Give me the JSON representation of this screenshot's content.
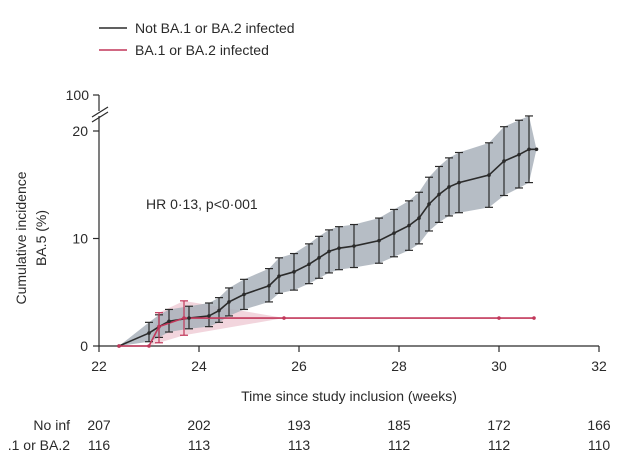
{
  "chart_data": {
    "type": "line",
    "title": "",
    "xlabel": "Time since study inclusion (weeks)",
    "ylabel": "Cumulative incidence BA.5 (%)",
    "ylabel_lines": [
      "Cumulative incidence",
      "BA.5 (%)"
    ],
    "xlim": [
      22,
      32
    ],
    "ylim": [
      0,
      20
    ],
    "x_ticks": [
      "22",
      "24",
      "26",
      "28",
      "30",
      "32"
    ],
    "y_ticks": [
      "0",
      "10",
      "20"
    ],
    "y_break_label": "100",
    "annotation": "HR 0·13, p<0·001",
    "legend_position": "top-left",
    "grid": false,
    "series": [
      {
        "name": "Not BA.1 or BA.2 infected",
        "color": "#2b2b2b",
        "band_color": "#a9b1bb",
        "points": [
          {
            "x": 22.4,
            "y": 0,
            "lo": 0,
            "hi": 0
          },
          {
            "x": 23.0,
            "y": 1.2,
            "lo": 0.4,
            "hi": 2.2
          },
          {
            "x": 23.2,
            "y": 1.8,
            "lo": 0.8,
            "hi": 2.9
          },
          {
            "x": 23.4,
            "y": 2.3,
            "lo": 1.3,
            "hi": 3.4
          },
          {
            "x": 23.8,
            "y": 2.6,
            "lo": 1.6,
            "hi": 3.7
          },
          {
            "x": 24.2,
            "y": 2.8,
            "lo": 1.8,
            "hi": 4.0
          },
          {
            "x": 24.4,
            "y": 3.3,
            "lo": 2.2,
            "hi": 4.5
          },
          {
            "x": 24.6,
            "y": 4.1,
            "lo": 2.8,
            "hi": 5.4
          },
          {
            "x": 24.9,
            "y": 4.8,
            "lo": 3.4,
            "hi": 6.2
          },
          {
            "x": 25.4,
            "y": 5.6,
            "lo": 4.1,
            "hi": 7.2
          },
          {
            "x": 25.6,
            "y": 6.5,
            "lo": 4.9,
            "hi": 8.2
          },
          {
            "x": 25.9,
            "y": 6.9,
            "lo": 5.2,
            "hi": 8.6
          },
          {
            "x": 26.2,
            "y": 7.6,
            "lo": 5.8,
            "hi": 9.5
          },
          {
            "x": 26.4,
            "y": 8.2,
            "lo": 6.3,
            "hi": 10.2
          },
          {
            "x": 26.6,
            "y": 8.8,
            "lo": 6.8,
            "hi": 10.8
          },
          {
            "x": 26.8,
            "y": 9.1,
            "lo": 7.1,
            "hi": 11.1
          },
          {
            "x": 27.1,
            "y": 9.3,
            "lo": 7.3,
            "hi": 11.3
          },
          {
            "x": 27.6,
            "y": 9.8,
            "lo": 7.7,
            "hi": 11.9
          },
          {
            "x": 27.9,
            "y": 10.5,
            "lo": 8.3,
            "hi": 12.7
          },
          {
            "x": 28.2,
            "y": 11.2,
            "lo": 8.9,
            "hi": 13.5
          },
          {
            "x": 28.4,
            "y": 11.9,
            "lo": 9.5,
            "hi": 14.3
          },
          {
            "x": 28.6,
            "y": 13.2,
            "lo": 10.7,
            "hi": 15.7
          },
          {
            "x": 28.8,
            "y": 14.1,
            "lo": 11.5,
            "hi": 16.7
          },
          {
            "x": 29.0,
            "y": 14.8,
            "lo": 12.1,
            "hi": 17.5
          },
          {
            "x": 29.2,
            "y": 15.2,
            "lo": 12.4,
            "hi": 18.0
          },
          {
            "x": 29.8,
            "y": 15.9,
            "lo": 12.9,
            "hi": 18.9
          },
          {
            "x": 30.1,
            "y": 17.2,
            "lo": 14.0,
            "hi": 20.4
          },
          {
            "x": 30.4,
            "y": 17.8,
            "lo": 14.7,
            "hi": 21.0
          },
          {
            "x": 30.6,
            "y": 18.3,
            "lo": 15.2,
            "hi": 21.4
          },
          {
            "x": 30.75,
            "y": 18.3,
            "lo": 18.3,
            "hi": 18.3
          }
        ]
      },
      {
        "name": "BA.1 or BA.2 infected",
        "color": "#c2375a",
        "band_color": "#e9b9c6",
        "points": [
          {
            "x": 22.4,
            "y": 0,
            "lo": 0,
            "hi": 0
          },
          {
            "x": 23.0,
            "y": 0,
            "lo": 0,
            "hi": 0
          },
          {
            "x": 23.2,
            "y": 1.8,
            "lo": 0.3,
            "hi": 3.1
          },
          {
            "x": 23.7,
            "y": 2.6,
            "lo": 1.0,
            "hi": 4.2
          },
          {
            "x": 25.7,
            "y": 2.6,
            "lo": 2.6,
            "hi": 2.6
          },
          {
            "x": 30.0,
            "y": 2.6,
            "lo": 2.6,
            "hi": 2.6
          },
          {
            "x": 30.7,
            "y": 2.6,
            "lo": 2.6,
            "hi": 2.6
          }
        ]
      }
    ],
    "risk_table": {
      "rows": [
        {
          "label": "No inf",
          "values": [
            "207",
            "202",
            "193",
            "185",
            "172",
            "166"
          ]
        },
        {
          "label": ".1 or BA.2",
          "values": [
            "116",
            "113",
            "113",
            "112",
            "112",
            "110"
          ]
        }
      ]
    }
  }
}
